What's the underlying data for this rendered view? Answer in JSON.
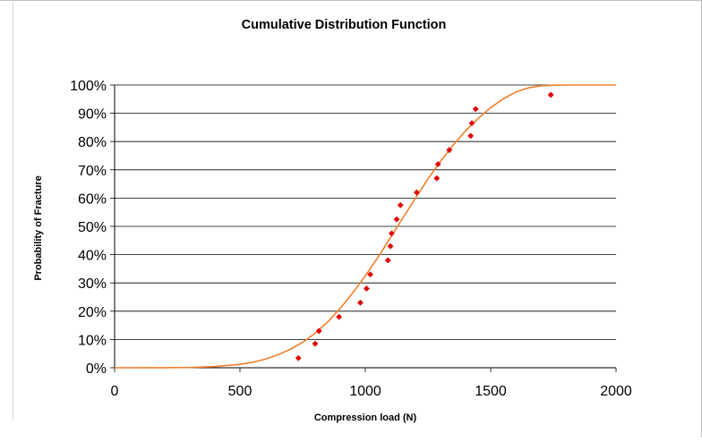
{
  "chart_data": {
    "type": "scatter",
    "title": "Cumulative Distribution Function",
    "xlabel": "Compression load (N)",
    "ylabel": "Probability of Fracture",
    "xlim": [
      0,
      2000
    ],
    "ylim": [
      0,
      1
    ],
    "x_ticks": [
      "0",
      "500",
      "1000",
      "1500",
      "2000"
    ],
    "y_ticks": [
      "0%",
      "10%",
      "20%",
      "30%",
      "40%",
      "50%",
      "60%",
      "70%",
      "80%",
      "90%",
      "100%"
    ],
    "grid": "horizontal",
    "legend": "none",
    "series": [
      {
        "kind": "points",
        "color": "#e00000",
        "points": [
          {
            "x": 733,
            "y": 0.034
          },
          {
            "x": 800,
            "y": 0.085
          },
          {
            "x": 815,
            "y": 0.13
          },
          {
            "x": 895,
            "y": 0.18
          },
          {
            "x": 980,
            "y": 0.23
          },
          {
            "x": 1005,
            "y": 0.28
          },
          {
            "x": 1020,
            "y": 0.33
          },
          {
            "x": 1090,
            "y": 0.38
          },
          {
            "x": 1100,
            "y": 0.43
          },
          {
            "x": 1105,
            "y": 0.475
          },
          {
            "x": 1125,
            "y": 0.525
          },
          {
            "x": 1140,
            "y": 0.575
          },
          {
            "x": 1205,
            "y": 0.62
          },
          {
            "x": 1285,
            "y": 0.67
          },
          {
            "x": 1290,
            "y": 0.72
          },
          {
            "x": 1335,
            "y": 0.77
          },
          {
            "x": 1420,
            "y": 0.82
          },
          {
            "x": 1425,
            "y": 0.865
          },
          {
            "x": 1440,
            "y": 0.915
          },
          {
            "x": 1740,
            "y": 0.965
          }
        ]
      },
      {
        "kind": "curve",
        "color": "#f07f2a",
        "x": [
          0,
          200,
          300,
          400,
          500,
          550,
          600,
          650,
          700,
          750,
          800,
          850,
          900,
          950,
          1000,
          1050,
          1100,
          1150,
          1200,
          1250,
          1300,
          1350,
          1400,
          1450,
          1500,
          1550,
          1600,
          1650,
          1700,
          1750,
          1800,
          2000
        ],
        "y": [
          0,
          0.0002,
          0.001,
          0.004,
          0.012,
          0.019,
          0.03,
          0.045,
          0.065,
          0.09,
          0.122,
          0.162,
          0.21,
          0.265,
          0.325,
          0.39,
          0.46,
          0.53,
          0.6,
          0.668,
          0.73,
          0.787,
          0.838,
          0.882,
          0.92,
          0.951,
          0.975,
          0.99,
          0.997,
          0.999,
          1.0,
          1.0
        ]
      }
    ]
  }
}
